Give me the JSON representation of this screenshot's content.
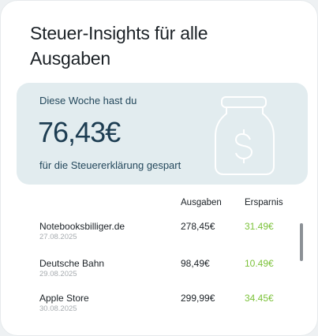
{
  "header": {
    "title": "Steuer-Insights für alle Ausgaben"
  },
  "savings": {
    "caption": "Diese Woche hast du",
    "amount": "76,43€",
    "subtitle": "für die Steuererklärung gespart",
    "icon": "money-jar-icon"
  },
  "table": {
    "columns": {
      "spend": "Ausgaben",
      "saving": "Ersparnis"
    },
    "rows": [
      {
        "merchant": "Notebooksbilliger.de",
        "date": "27.08.2025",
        "amount": "278,45€",
        "saving": "31.49€"
      },
      {
        "merchant": "Deutsche Bahn",
        "date": "29.08.2025",
        "amount": "98,49€",
        "saving": "10.49€"
      },
      {
        "merchant": "Apple Store",
        "date": "30.08.2025",
        "amount": "299,99€",
        "saving": "34.45€"
      }
    ]
  },
  "colors": {
    "accent_green": "#7cc23a",
    "panel": "#e2ecef",
    "amount_text": "#1d3d52"
  }
}
